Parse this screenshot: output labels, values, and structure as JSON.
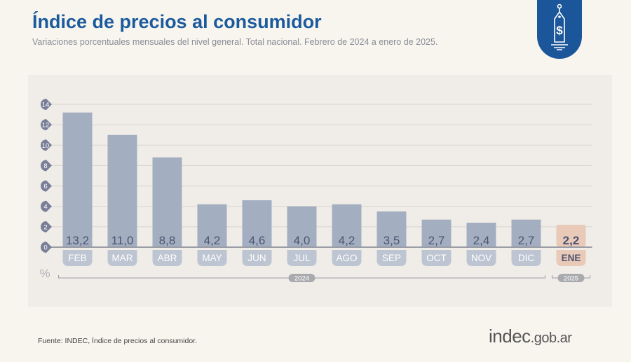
{
  "header": {
    "title": "Índice de precios al consumidor",
    "subtitle": "Variaciones porcentuales mensuales del nivel general. Total nacional. Febrero de 2024 a enero de 2025.",
    "icon": "price-tag-dollar-icon"
  },
  "footer": {
    "source": "Fuente: INDEC, Índice de precios al consumidor.",
    "logo_main": "indec",
    "logo_domain": ".gob.ar"
  },
  "chart_data": {
    "type": "bar",
    "categories": [
      "FEB",
      "MAR",
      "ABR",
      "MAY",
      "JUN",
      "JUL",
      "AGO",
      "SEP",
      "OCT",
      "NOV",
      "DIC",
      "ENE"
    ],
    "values": [
      13.2,
      11.0,
      8.8,
      4.2,
      4.6,
      4.0,
      4.2,
      3.5,
      2.7,
      2.4,
      2.7,
      2.2
    ],
    "data_labels": [
      "13,2",
      "11,0",
      "8,8",
      "4,2",
      "4,6",
      "4,0",
      "4,2",
      "3,5",
      "2,7",
      "2,4",
      "2,7",
      "2,2"
    ],
    "ylabel": "%",
    "ylim": [
      0,
      14
    ],
    "yticks": [
      0,
      2,
      4,
      6,
      8,
      10,
      12,
      14
    ],
    "grid": true,
    "groups": [
      {
        "label": "2024",
        "from": 0,
        "to": 10
      },
      {
        "label": "2025",
        "from": 11,
        "to": 11
      }
    ],
    "highlight_index": 11,
    "colors": {
      "bar": "#a3afc0",
      "highlight": "#e9c9b7",
      "label_pill": "#bdc5d2",
      "label_pill_highlight": "#e9c9b7",
      "tick": "#7a7f98",
      "text": "#4d5472",
      "title": "#1b5a9c"
    }
  }
}
